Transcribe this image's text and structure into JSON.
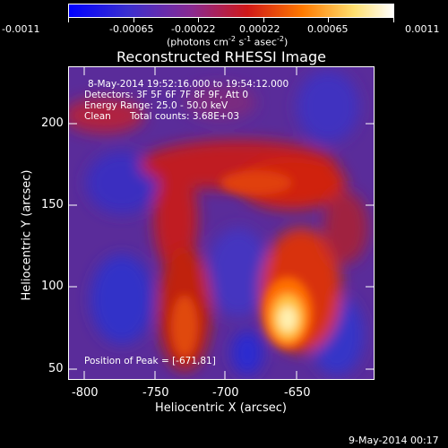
{
  "colorbar": {
    "tick_labels": [
      "-0.0011",
      "-0.00065",
      "-0.00022",
      "0.00022",
      "0.00065",
      "0.0011"
    ],
    "units_text": "(photons cm",
    "units_exp1": "-2",
    "units_mid": " s",
    "units_exp2": "-1",
    "units_mid2": " asec",
    "units_exp3": "-2",
    "units_end": ")",
    "gradient_colors": [
      "#0000ff",
      "#3a2fd0",
      "#8a2a90",
      "#d01818",
      "#ff7a00",
      "#ffe070",
      "#ffffff"
    ]
  },
  "title": "Reconstructed RHESSI Image",
  "overlay": {
    "line1": "8-May-2014 19:52:16.000 to 19:54:12.000",
    "line2": "Detectors: 3F 5F 6F 7F 8F 9F, Att 0",
    "line3": "Energy Range: 25.0 - 50.0 keV",
    "line4_left": "Clean",
    "line4_right": "Total counts: 3.68E+03",
    "peak": "Position of Peak = [-671,81]"
  },
  "axes": {
    "xlabel": "Heliocentric X (arcsec)",
    "ylabel": "Heliocentric Y (arcsec)",
    "xticks": [
      "-800",
      "-750",
      "-700",
      "-650"
    ],
    "yticks": [
      "50",
      "100",
      "150",
      "200"
    ]
  },
  "footer": "9-May-2014 00:17"
}
